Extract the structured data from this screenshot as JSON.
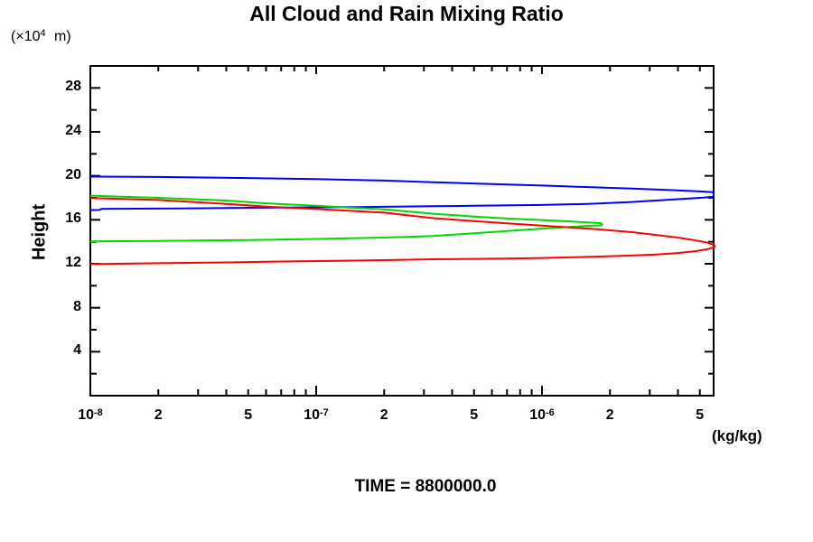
{
  "header": {
    "title": "All Cloud and Rain Mixing Ratio"
  },
  "labels": {
    "y_unit_prefix": "(×10",
    "y_unit_exp": "4",
    "y_unit_suffix": " m)",
    "y_axis_title": "Height",
    "x_unit": "(kg/kg)",
    "time": "TIME = 8800000.0"
  },
  "chart_data": {
    "type": "line",
    "title": "All Cloud and Rain Mixing Ratio",
    "xlabel": "(kg/kg)",
    "ylabel": "Height (×10^4 m)",
    "annotation": "TIME = 8800000.0",
    "x_scale": "log",
    "xlim": [
      1e-08,
      5.75e-06
    ],
    "ylim": [
      0,
      30
    ],
    "grid": false,
    "legend": null,
    "y_ticks_major": [
      4,
      8,
      12,
      16,
      20,
      24,
      28
    ],
    "y_ticks_minor": [
      2,
      6,
      10,
      14,
      18,
      22,
      26
    ],
    "x_ticks": [
      {
        "v": 1e-08,
        "major": true,
        "label": {
          "base": "10",
          "exp": "-8"
        }
      },
      {
        "v": 2e-08,
        "major": false,
        "label": {
          "base": "2"
        }
      },
      {
        "v": 3e-08,
        "major": false
      },
      {
        "v": 4e-08,
        "major": false
      },
      {
        "v": 5e-08,
        "major": false,
        "label": {
          "base": "5"
        }
      },
      {
        "v": 6e-08,
        "major": false
      },
      {
        "v": 7e-08,
        "major": false
      },
      {
        "v": 8e-08,
        "major": false
      },
      {
        "v": 9e-08,
        "major": false
      },
      {
        "v": 1e-07,
        "major": true,
        "label": {
          "base": "10",
          "exp": "-7"
        }
      },
      {
        "v": 2e-07,
        "major": false,
        "label": {
          "base": "2"
        }
      },
      {
        "v": 3e-07,
        "major": false
      },
      {
        "v": 4e-07,
        "major": false
      },
      {
        "v": 5e-07,
        "major": false,
        "label": {
          "base": "5"
        }
      },
      {
        "v": 6e-07,
        "major": false
      },
      {
        "v": 7e-07,
        "major": false
      },
      {
        "v": 8e-07,
        "major": false
      },
      {
        "v": 9e-07,
        "major": false
      },
      {
        "v": 1e-06,
        "major": true,
        "label": {
          "base": "10",
          "exp": "-6"
        }
      },
      {
        "v": 2e-06,
        "major": false,
        "label": {
          "base": "2"
        }
      },
      {
        "v": 3e-06,
        "major": false
      },
      {
        "v": 4e-06,
        "major": false
      },
      {
        "v": 5e-06,
        "major": false,
        "label": {
          "base": "5"
        }
      }
    ],
    "series": [
      {
        "name": "series-blue",
        "color": "#0000ff",
        "points": [
          [
            1e-08,
            19.93
          ],
          [
            2e-08,
            19.9
          ],
          [
            5e-08,
            19.8
          ],
          [
            1e-07,
            19.7
          ],
          [
            2e-07,
            19.57
          ],
          [
            3.3e-07,
            19.42
          ],
          [
            6e-07,
            19.25
          ],
          [
            1e-06,
            19.12
          ],
          [
            1.6e-06,
            18.98
          ],
          [
            2.5e-06,
            18.84
          ],
          [
            4e-06,
            18.68
          ],
          [
            5.2e-06,
            18.57
          ],
          [
            5.75e-06,
            18.5
          ],
          [
            5.75e-06,
            18.1
          ],
          [
            5.2e-06,
            18.02
          ],
          [
            4e-06,
            17.88
          ],
          [
            2.5e-06,
            17.62
          ],
          [
            1.6e-06,
            17.45
          ],
          [
            1e-06,
            17.35
          ],
          [
            5e-07,
            17.28
          ],
          [
            3.3e-07,
            17.24
          ],
          [
            1.5e-07,
            17.16
          ],
          [
            6e-08,
            17.1
          ],
          [
            2.5e-08,
            17.04
          ],
          [
            1.12e-08,
            17.0
          ],
          [
            1.1e-08,
            16.9
          ],
          [
            1e-08,
            16.88
          ]
        ]
      },
      {
        "name": "series-green",
        "color": "#00d900",
        "points": [
          [
            1e-08,
            18.2
          ],
          [
            2e-08,
            18.0
          ],
          [
            4e-08,
            17.75
          ],
          [
            6e-08,
            17.5
          ],
          [
            1e-07,
            17.28
          ],
          [
            2e-07,
            16.95
          ],
          [
            3.3e-07,
            16.55
          ],
          [
            5e-07,
            16.3
          ],
          [
            7e-07,
            16.12
          ],
          [
            1e-06,
            15.98
          ],
          [
            1.3e-06,
            15.86
          ],
          [
            1.6e-06,
            15.76
          ],
          [
            1.8e-06,
            15.7
          ],
          [
            1.84e-06,
            15.64
          ],
          [
            1.85e-06,
            15.57
          ],
          [
            1.83e-06,
            15.5
          ],
          [
            1.6e-06,
            15.45
          ],
          [
            1.3e-06,
            15.34
          ],
          [
            1e-06,
            15.2
          ],
          [
            7e-07,
            14.98
          ],
          [
            5e-07,
            14.78
          ],
          [
            3.3e-07,
            14.52
          ],
          [
            2e-07,
            14.38
          ],
          [
            1e-07,
            14.26
          ],
          [
            5e-08,
            14.16
          ],
          [
            2e-08,
            14.08
          ],
          [
            1e-08,
            14.04
          ]
        ]
      },
      {
        "name": "series-red",
        "color": "#ff0000",
        "points": [
          [
            1e-08,
            17.98
          ],
          [
            2e-08,
            17.8
          ],
          [
            4e-08,
            17.45
          ],
          [
            6e-08,
            17.2
          ],
          [
            1e-07,
            16.98
          ],
          [
            2e-07,
            16.65
          ],
          [
            3.3e-07,
            16.15
          ],
          [
            5e-07,
            15.88
          ],
          [
            7e-07,
            15.68
          ],
          [
            1e-06,
            15.48
          ],
          [
            1.4e-06,
            15.28
          ],
          [
            1.8e-06,
            15.12
          ],
          [
            2.5e-06,
            14.88
          ],
          [
            3.2e-06,
            14.62
          ],
          [
            4e-06,
            14.38
          ],
          [
            4.8e-06,
            14.12
          ],
          [
            5.4e-06,
            13.92
          ],
          [
            5.75e-06,
            13.72
          ],
          [
            5.82e-06,
            13.66
          ],
          [
            5.82e-06,
            13.58
          ],
          [
            5.75e-06,
            13.5
          ],
          [
            5.4e-06,
            13.32
          ],
          [
            4.8e-06,
            13.15
          ],
          [
            4e-06,
            12.98
          ],
          [
            3.2e-06,
            12.85
          ],
          [
            2.5e-06,
            12.75
          ],
          [
            1.8e-06,
            12.66
          ],
          [
            1.4e-06,
            12.6
          ],
          [
            1e-06,
            12.53
          ],
          [
            7e-07,
            12.48
          ],
          [
            5e-07,
            12.44
          ],
          [
            3.3e-07,
            12.41
          ],
          [
            2e-07,
            12.33
          ],
          [
            1e-07,
            12.25
          ],
          [
            6e-08,
            12.18
          ],
          [
            4e-08,
            12.12
          ],
          [
            2e-08,
            12.05
          ],
          [
            1e-08,
            11.97
          ]
        ]
      }
    ]
  }
}
